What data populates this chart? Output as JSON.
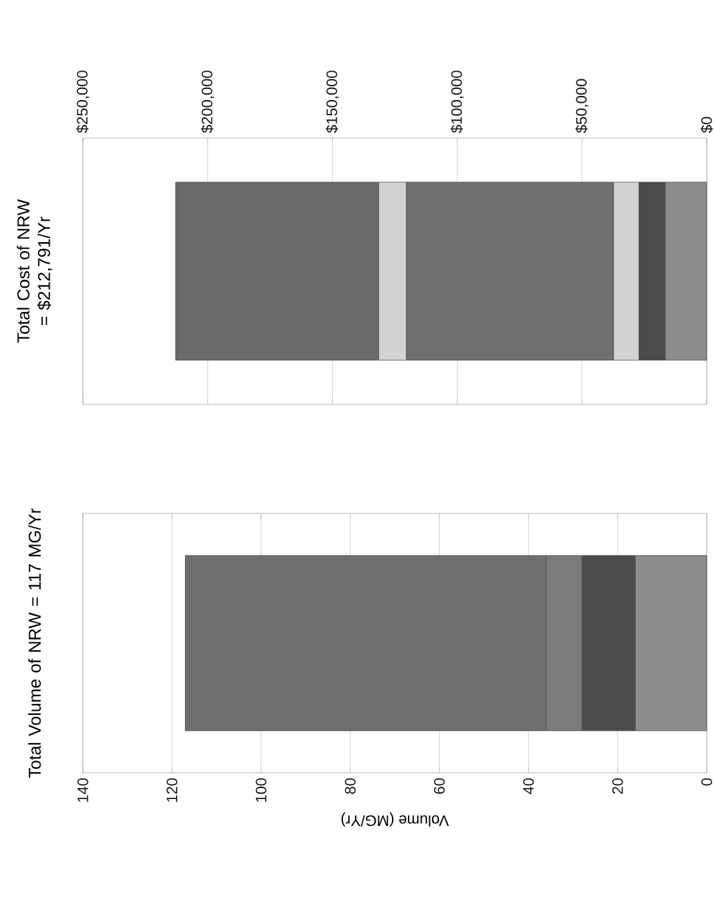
{
  "chart_data": [
    {
      "type": "bar",
      "title": "Total Cost of NRW = $212,791/Yr",
      "orientation": "horizontal",
      "stacked": true,
      "categories": [
        null
      ],
      "series": [
        {
          "color": "#8c8c8c",
          "values": [
            16600
          ]
        },
        {
          "color": "#4c4c4c",
          "values": [
            10500
          ]
        },
        {
          "color": "#d3d3d3",
          "values": [
            10200
          ]
        },
        {
          "color": "#6f6f6f",
          "values": [
            83000
          ]
        },
        {
          "color": "#d3d3d3",
          "values": [
            11100
          ]
        },
        {
          "color": "#6a6a6a",
          "values": [
            81400
          ]
        }
      ],
      "xlim": [
        250000,
        0
      ],
      "xticks": [
        {
          "value": 0,
          "label": "$0"
        },
        {
          "value": 50000,
          "label": "$50,000"
        },
        {
          "value": 100000,
          "label": "$100,000"
        },
        {
          "value": 150000,
          "label": "$150,000"
        },
        {
          "value": 200000,
          "label": "$200,000"
        },
        {
          "value": 250000,
          "label": "$250,000"
        }
      ],
      "grid": "x"
    },
    {
      "type": "bar",
      "title": "Total Volume of NRW = 117 MG/Yr",
      "xlabel": "Volume (MG/Yr)",
      "orientation": "horizontal",
      "stacked": true,
      "categories": [
        null
      ],
      "series": [
        {
          "color": "#8c8c8c",
          "values": [
            16
          ]
        },
        {
          "color": "#4c4c4c",
          "values": [
            12
          ]
        },
        {
          "color": "#7b7b7b",
          "values": [
            8
          ]
        },
        {
          "color": "#6e6e6e",
          "values": [
            81
          ]
        }
      ],
      "xlim": [
        140,
        0
      ],
      "xticks": [
        0,
        20,
        40,
        60,
        80,
        100,
        120,
        140
      ],
      "grid": "x"
    }
  ]
}
